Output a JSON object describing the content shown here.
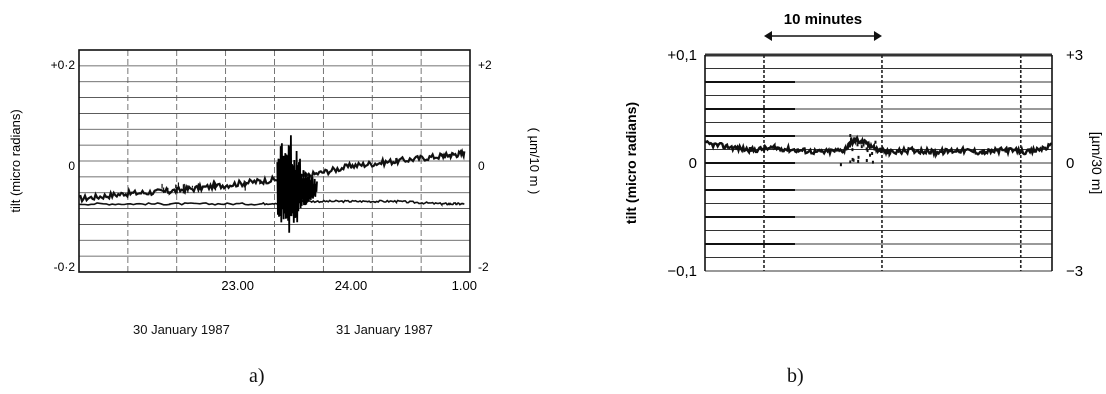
{
  "chart_data": [
    {
      "type": "line",
      "panel_label": "a)",
      "ylabel": "tilt (micro radians)",
      "ylabel_right": "( µm/10 m )",
      "yticks_left": [
        "+0·2",
        "0",
        "-0·2"
      ],
      "yticks_left_values": [
        0.2,
        0,
        -0.2
      ],
      "yticks_right": [
        "+2",
        "0",
        "-2"
      ],
      "xticks": [
        "23.00",
        "24.00",
        "1.00"
      ],
      "xticks_values": [
        23,
        24,
        25
      ],
      "date_labels": [
        "30 January 1987",
        "31 January 1987"
      ],
      "xlim": [
        21.6,
        25.05
      ],
      "ylim": [
        -0.21,
        0.23
      ],
      "grid": true,
      "series": [
        {
          "x": [
            21.6,
            22.0,
            22.4,
            22.8,
            23.2,
            23.6,
            24.0,
            24.4,
            24.8,
            25.0
          ],
          "y": [
            -0.065,
            -0.055,
            -0.05,
            -0.04,
            -0.03,
            -0.02,
            0.0,
            0.01,
            0.02,
            0.025
          ]
        },
        {
          "x": [
            21.6,
            22.4,
            23.2,
            23.6,
            24.0,
            24.4,
            24.8,
            25.0
          ],
          "y": [
            -0.075,
            -0.075,
            -0.075,
            -0.07,
            -0.07,
            -0.07,
            -0.075,
            -0.075
          ]
        }
      ],
      "event": {
        "x": 23.45,
        "ymin": -0.18,
        "ymax": 0.12
      }
    },
    {
      "type": "line",
      "panel_label": "b)",
      "title": "10 minutes",
      "ylabel": "tilt (micro radians)",
      "ylabel_right": "[µm/30 m]",
      "yticks_left": [
        "+0,1",
        "0",
        "−0,1"
      ],
      "yticks_left_values": [
        0.1,
        0,
        -0.1
      ],
      "yticks_right": [
        "+3",
        "0",
        "−3"
      ],
      "ylim": [
        -0.1,
        0.1
      ],
      "xlim": [
        0,
        30
      ],
      "scale_bar_minutes": [
        5.1,
        15.3
      ],
      "grid": true,
      "series": [
        {
          "x": [
            0,
            2,
            4,
            6,
            8,
            10,
            12,
            13,
            14,
            15,
            16,
            18,
            20,
            22,
            24,
            26,
            28,
            30
          ],
          "y": [
            0.018,
            0.015,
            0.012,
            0.014,
            0.012,
            0.01,
            0.012,
            0.022,
            0.018,
            0.012,
            0.01,
            0.012,
            0.01,
            0.012,
            0.01,
            0.012,
            0.01,
            0.016
          ]
        }
      ],
      "event": {
        "x": 13.2,
        "ymin": -0.005,
        "ymax": 0.03
      }
    }
  ]
}
